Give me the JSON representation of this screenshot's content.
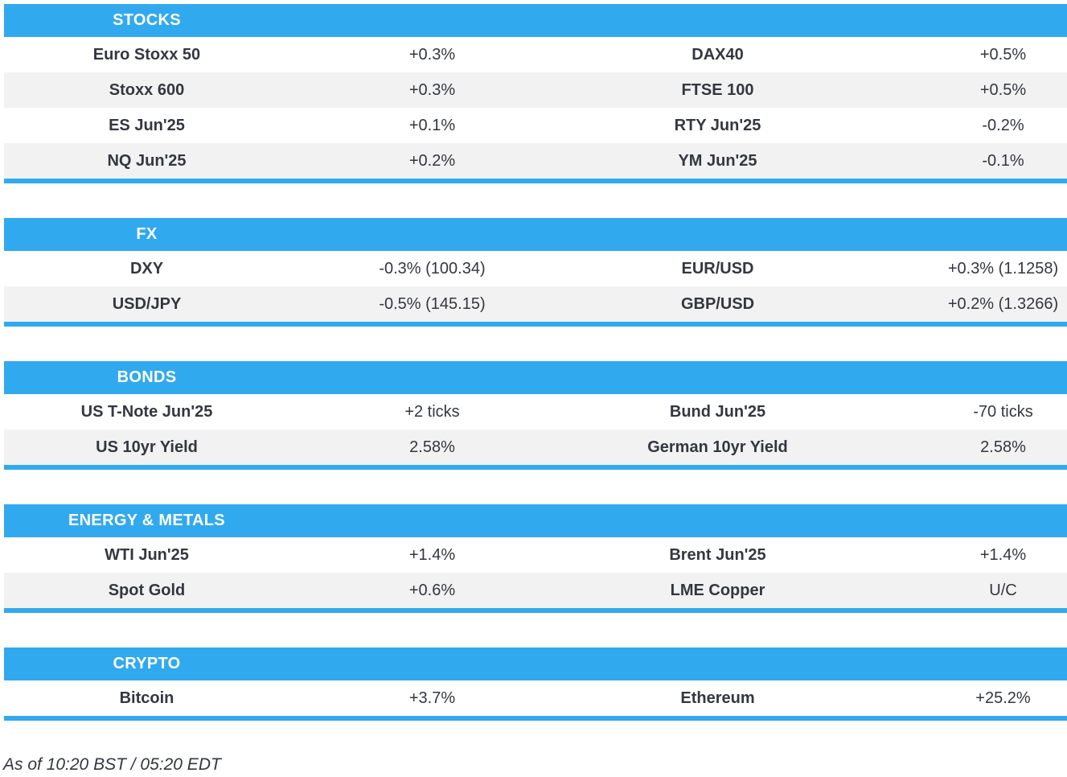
{
  "chart_data": [
    {
      "type": "table",
      "title": "STOCKS",
      "rows": [
        [
          "Euro Stoxx 50",
          "+0.3%",
          "DAX40",
          "+0.5%"
        ],
        [
          "Stoxx 600",
          "+0.3%",
          "FTSE 100",
          "+0.5%"
        ],
        [
          "ES Jun'25",
          "+0.1%",
          "RTY Jun'25",
          "-0.2%"
        ],
        [
          "NQ Jun'25",
          "+0.2%",
          "YM Jun'25",
          "-0.1%"
        ]
      ]
    },
    {
      "type": "table",
      "title": "FX",
      "rows": [
        [
          "DXY",
          "-0.3% (100.34)",
          "EUR/USD",
          "+0.3% (1.1258)"
        ],
        [
          "USD/JPY",
          "-0.5% (145.15)",
          "GBP/USD",
          "+0.2% (1.3266)"
        ]
      ]
    },
    {
      "type": "table",
      "title": "BONDS",
      "rows": [
        [
          "US T-Note Jun'25",
          "+2 ticks",
          "Bund Jun'25",
          "-70 ticks"
        ],
        [
          "US 10yr Yield",
          "2.58%",
          "German 10yr Yield",
          "2.58%"
        ]
      ]
    },
    {
      "type": "table",
      "title": "ENERGY & METALS",
      "rows": [
        [
          "WTI Jun'25",
          "+1.4%",
          "Brent Jun'25",
          "+1.4%"
        ],
        [
          "Spot Gold",
          "+0.6%",
          "LME Copper",
          "U/C"
        ]
      ]
    },
    {
      "type": "table",
      "title": "CRYPTO",
      "rows": [
        [
          "Bitcoin",
          "+3.7%",
          "Ethereum",
          "+25.2%"
        ]
      ]
    }
  ],
  "footer": {
    "as_of": "As of 10:20 BST / 05:20 EDT"
  },
  "colors": {
    "accent": "#31a9ee",
    "row_alt": "#f2f2f2",
    "text": "#333740"
  }
}
